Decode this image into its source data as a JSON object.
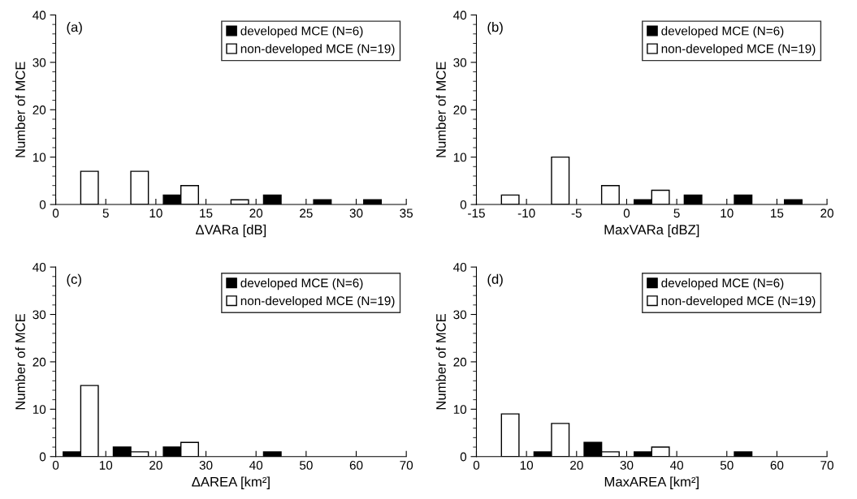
{
  "chart_data": [
    {
      "type": "bar",
      "xlabel": "ΔVARa [dB]",
      "ylabel": "Number of MCE",
      "annotations": [
        "(a)"
      ],
      "x": [
        2.5,
        7.5,
        12.5,
        17.5,
        22.5,
        27.5,
        32.5
      ],
      "xlim": [
        0,
        35
      ],
      "xticks": [
        0,
        5,
        10,
        15,
        20,
        25,
        30,
        35
      ],
      "ylim": [
        0,
        40
      ],
      "yticks": [
        0,
        10,
        20,
        30,
        40
      ],
      "legend": "top right",
      "grid": false,
      "series": [
        {
          "name": "developed MCE (N=6)",
          "color": "#000000",
          "values": [
            0,
            0,
            2,
            0,
            2,
            1,
            1
          ]
        },
        {
          "name": "non-developed MCE (N=19)",
          "color": "#ffffff",
          "values": [
            7,
            7,
            4,
            1,
            0,
            0,
            0
          ]
        }
      ]
    },
    {
      "type": "bar",
      "xlabel": "MaxVARa [dBZ]",
      "ylabel": "Number of MCE",
      "annotations": [
        "(b)"
      ],
      "x": [
        -12.5,
        -7.5,
        -2.5,
        2.5,
        7.5,
        12.5,
        17.5
      ],
      "xlim": [
        -15,
        20
      ],
      "xticks": [
        -15,
        -10,
        -5,
        0,
        5,
        10,
        15,
        20
      ],
      "ylim": [
        0,
        40
      ],
      "yticks": [
        0,
        10,
        20,
        30,
        40
      ],
      "legend": "top right",
      "grid": false,
      "series": [
        {
          "name": "developed MCE (N=6)",
          "color": "#000000",
          "values": [
            0,
            0,
            0,
            1,
            2,
            2,
            1
          ]
        },
        {
          "name": "non-developed MCE (N=19)",
          "color": "#ffffff",
          "values": [
            2,
            10,
            4,
            3,
            0,
            0,
            0
          ]
        }
      ]
    },
    {
      "type": "bar",
      "xlabel": "ΔAREA [km²]",
      "ylabel": "Number of MCE",
      "annotations": [
        "(c)"
      ],
      "x": [
        5,
        15,
        25,
        35,
        45,
        55,
        65
      ],
      "xlim": [
        0,
        70
      ],
      "xticks": [
        0,
        10,
        20,
        30,
        40,
        50,
        60,
        70
      ],
      "ylim": [
        0,
        40
      ],
      "yticks": [
        0,
        10,
        20,
        30,
        40
      ],
      "legend": "top right",
      "grid": false,
      "series": [
        {
          "name": "developed MCE (N=6)",
          "color": "#000000",
          "values": [
            1,
            2,
            2,
            0,
            1,
            0,
            0
          ]
        },
        {
          "name": "non-developed MCE (N=19)",
          "color": "#ffffff",
          "values": [
            15,
            1,
            3,
            0,
            0,
            0,
            0
          ]
        }
      ]
    },
    {
      "type": "bar",
      "xlabel": "MaxAREA [km²]",
      "ylabel": "Number of MCE",
      "annotations": [
        "(d)"
      ],
      "x": [
        5,
        15,
        25,
        35,
        45,
        55,
        65
      ],
      "xlim": [
        0,
        70
      ],
      "xticks": [
        0,
        10,
        20,
        30,
        40,
        50,
        60,
        70
      ],
      "ylim": [
        0,
        40
      ],
      "yticks": [
        0,
        10,
        20,
        30,
        40
      ],
      "legend": "top right",
      "grid": false,
      "series": [
        {
          "name": "developed MCE (N=6)",
          "color": "#000000",
          "values": [
            0,
            1,
            3,
            1,
            0,
            1,
            0
          ]
        },
        {
          "name": "non-developed MCE (N=19)",
          "color": "#ffffff",
          "values": [
            9,
            7,
            1,
            2,
            0,
            0,
            0
          ]
        }
      ]
    }
  ]
}
